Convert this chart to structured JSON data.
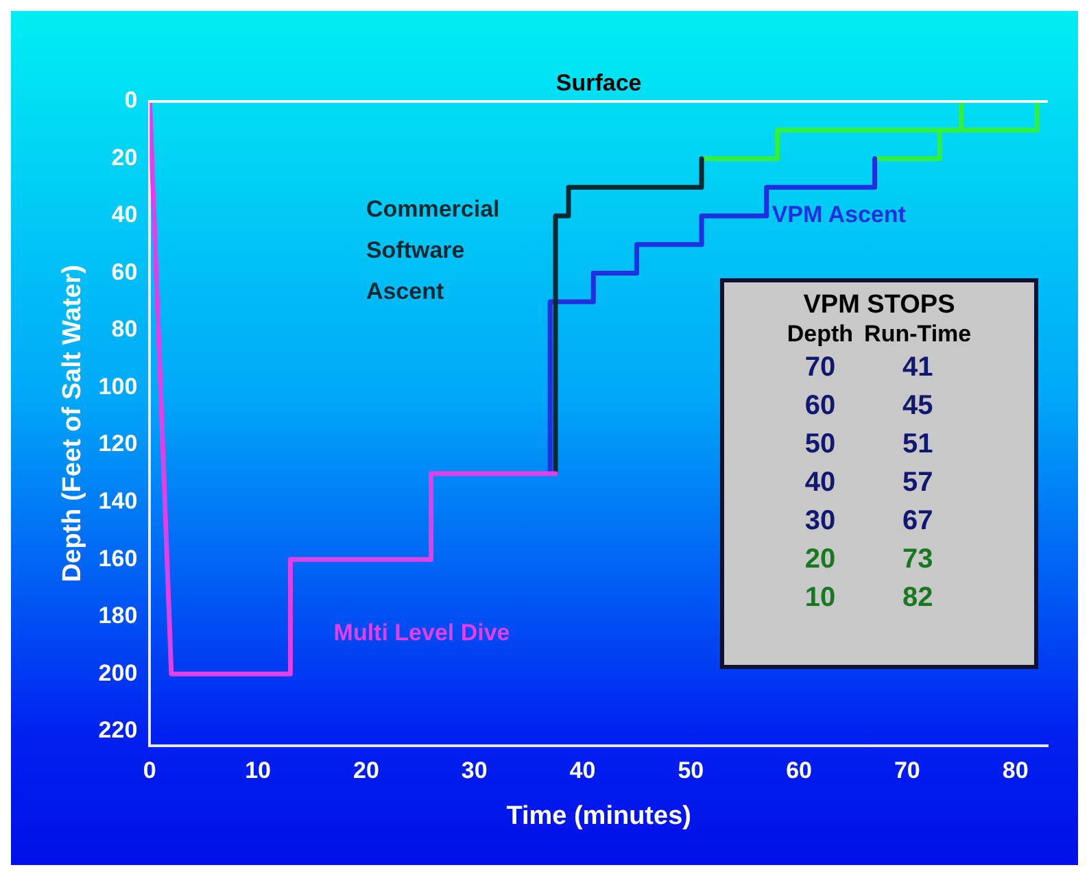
{
  "chart_data": {
    "type": "line",
    "xlabel": "Time (minutes)",
    "ylabel": "Depth (Feet of Salt Water)",
    "xlim": [
      0,
      83
    ],
    "xticks": [
      0,
      10,
      20,
      30,
      40,
      50,
      60,
      70,
      80
    ],
    "ylim": [
      225,
      0
    ],
    "yticks": [
      0,
      20,
      40,
      60,
      80,
      100,
      120,
      140,
      160,
      180,
      200,
      220
    ],
    "grid": false,
    "legend": false,
    "marker": "none",
    "line_style": "solid",
    "series": [
      {
        "name": "Multi Level Dive",
        "color": "#e040e8",
        "x": [
          0,
          2,
          13,
          13,
          26,
          26,
          37.5
        ],
        "values": [
          0,
          200,
          200,
          160,
          160,
          130,
          130
        ]
      },
      {
        "name": "Commercial Software Ascent",
        "color": "#0a2a33",
        "x": [
          37.5,
          37.5,
          38.7,
          38.7,
          51,
          51
        ],
        "values": [
          130,
          40,
          40,
          30,
          30,
          20
        ]
      },
      {
        "color": "#30f040",
        "x": [
          51,
          58,
          58,
          75,
          75
        ],
        "values": [
          20,
          20,
          10,
          10,
          0
        ]
      },
      {
        "name": "VPM Ascent",
        "color": "#2030e0",
        "x": [
          37,
          37,
          41,
          41,
          45,
          45,
          51,
          51,
          57,
          57,
          67,
          67
        ],
        "values": [
          130,
          70,
          70,
          60,
          60,
          50,
          50,
          40,
          40,
          30,
          30,
          20
        ]
      },
      {
        "color": "#30f040",
        "x": [
          67,
          73,
          73,
          82,
          82
        ],
        "values": [
          20,
          20,
          10,
          10,
          0
        ]
      }
    ],
    "ref_lines": [
      {
        "axis": "y",
        "value": 0,
        "label": "Surface",
        "color": "#ffffff"
      }
    ],
    "annotations": [
      "VPM STOPS",
      "Depth",
      "Run-Time",
      "70",
      "41",
      "60",
      "45",
      "50",
      "51",
      "40",
      "57",
      "30",
      "67",
      "20",
      "73",
      "10",
      "82"
    ]
  }
}
